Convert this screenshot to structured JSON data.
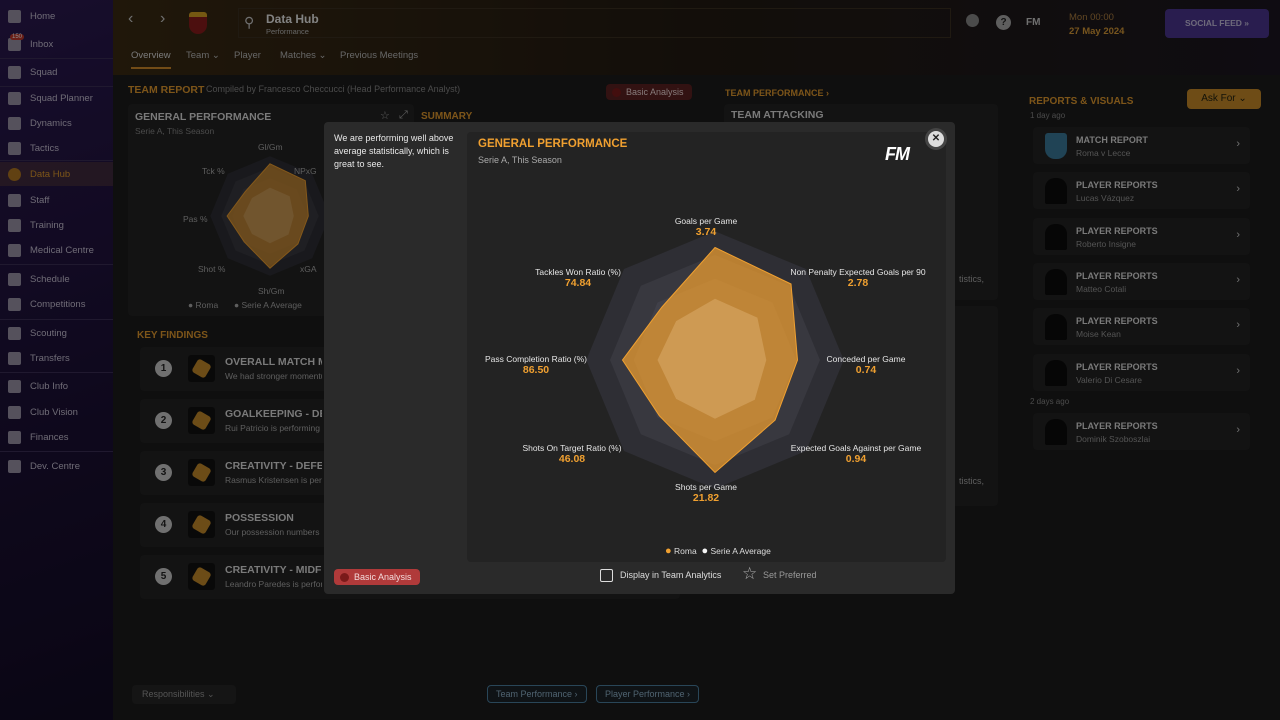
{
  "sidebar": {
    "items": [
      {
        "label": "Home",
        "icon": "home-icon"
      },
      {
        "label": "Inbox",
        "icon": "inbox-icon",
        "badge": "150"
      },
      {
        "label": "Squad",
        "icon": "shirt-icon"
      },
      {
        "label": "Squad Planner",
        "icon": "clipboard-icon"
      },
      {
        "label": "Dynamics",
        "icon": "dynamics-icon"
      },
      {
        "label": "Tactics",
        "icon": "tactics-icon"
      },
      {
        "label": "Data Hub",
        "icon": "data-hub-icon"
      },
      {
        "label": "Staff",
        "icon": "staff-icon"
      },
      {
        "label": "Training",
        "icon": "training-icon"
      },
      {
        "label": "Medical Centre",
        "icon": "medical-icon"
      },
      {
        "label": "Schedule",
        "icon": "calendar-icon"
      },
      {
        "label": "Competitions",
        "icon": "trophy-icon"
      },
      {
        "label": "Scouting",
        "icon": "search-icon"
      },
      {
        "label": "Transfers",
        "icon": "transfer-icon"
      },
      {
        "label": "Club Info",
        "icon": "shield-icon"
      },
      {
        "label": "Club Vision",
        "icon": "briefcase-icon"
      },
      {
        "label": "Finances",
        "icon": "money-icon"
      },
      {
        "label": "Dev. Centre",
        "icon": "dev-centre-icon"
      }
    ]
  },
  "header": {
    "title": "Data Hub",
    "subtitle": "Performance",
    "fm": "FM",
    "time": "Mon 00:00",
    "date": "27 May 2024",
    "social": "SOCIAL FEED »"
  },
  "tabs": [
    "Overview",
    "Team ⌄",
    "Player",
    "Matches ⌄",
    "Previous Meetings"
  ],
  "team_report": {
    "title": "TEAM REPORT",
    "compiled": "Compiled by Francesco Checcucci (Head Performance Analyst)",
    "basic": "Basic Analysis",
    "gp_title": "GENERAL PERFORMANCE",
    "gp_sub": "Serie A, This Season",
    "summary": "SUMMARY",
    "short_labels": [
      "Gl/Gm",
      "NPxG",
      "xGA",
      "Sh/Gm",
      "Shot %",
      "Pas %",
      "Tck %"
    ],
    "legend_roma": "Roma",
    "legend_avg": "Serie A Average"
  },
  "key_findings": {
    "title": "KEY FINDINGS",
    "items": [
      {
        "n": "1",
        "t": "OVERALL MATCH MOMENTUM",
        "s": "We had stronger momentum"
      },
      {
        "n": "2",
        "t": "GOALKEEPING - DEFENCE",
        "s": "Rui Patricio is performing well"
      },
      {
        "n": "3",
        "t": "CREATIVITY - DEFENCE",
        "s": "Rasmus Kristensen is performing"
      },
      {
        "n": "4",
        "t": "POSSESSION",
        "s": "Our possession numbers seem"
      },
      {
        "n": "5",
        "t": "CREATIVITY - MIDFIELD",
        "s": "Leandro Paredes is performing"
      }
    ]
  },
  "team_performance": {
    "title": "TEAM PERFORMANCE ›",
    "attacking": "TEAM ATTACKING",
    "frag": "tistics,"
  },
  "reports": {
    "title": "REPORTS & VISUALS",
    "ask": "Ask For ⌄",
    "day1": "1 day ago",
    "day2": "2 days ago",
    "items": [
      {
        "t": "MATCH REPORT",
        "s": "Roma v Lecce"
      },
      {
        "t": "PLAYER REPORTS",
        "s": "Lucas Vázquez"
      },
      {
        "t": "PLAYER REPORTS",
        "s": "Roberto Insigne"
      },
      {
        "t": "PLAYER REPORTS",
        "s": "Matteo Cotali"
      },
      {
        "t": "PLAYER REPORTS",
        "s": "Moise Kean"
      },
      {
        "t": "PLAYER REPORTS",
        "s": "Valerio Di Cesare"
      },
      {
        "t": "PLAYER REPORTS",
        "s": "Dominik Szoboszlai"
      }
    ]
  },
  "bottom": {
    "responsibilities": "Responsibilities ⌄",
    "team_perf": "Team Performance ›",
    "player_perf": "Player Performance ›"
  },
  "modal": {
    "summary": "We are performing well above average statistically, which is great to see.",
    "title": "GENERAL PERFORMANCE",
    "subtitle": "Serie A, This Season",
    "logo": "FM",
    "basic": "Basic Analysis",
    "display": "Display in Team Analytics",
    "preferred": "Set Preferred"
  },
  "colors": {
    "roma": "#f0a030",
    "average": "#f5f5f5",
    "accent": "#e39a2e"
  },
  "chart_data": {
    "type": "radar",
    "title": "GENERAL PERFORMANCE",
    "subtitle": "Serie A, This Season",
    "axes": [
      "Goals per Game",
      "Non Penalty Expected Goals per 90",
      "Conceded per Game",
      "Expected Goals Against per Game",
      "Shots per Game",
      "Shots On Target Ratio (%)",
      "Pass Completion Ratio (%)",
      "Tackles Won Ratio (%)"
    ],
    "value_labels": [
      "3.74",
      "2.78",
      "0.74",
      "0.94",
      "21.82",
      "46.08",
      "86.50",
      "74.84"
    ],
    "series": [
      {
        "name": "Roma",
        "normalized": [
          0.9,
          0.86,
          0.66,
          0.68,
          0.9,
          0.63,
          0.74,
          0.6
        ]
      },
      {
        "name": "Serie A Average",
        "normalized": [
          0.49,
          0.48,
          0.41,
          0.45,
          0.47,
          0.44,
          0.46,
          0.44
        ]
      }
    ],
    "legend": [
      "Roma",
      "Serie A Average"
    ],
    "legend_position": "bottom"
  }
}
